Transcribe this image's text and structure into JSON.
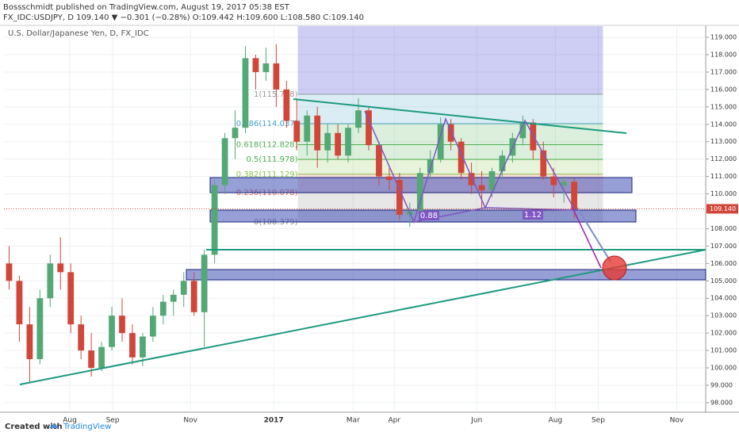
{
  "header": {
    "publisher": "Bossschmidt published on TradingView.com, August 19, 2017 05:38 EST",
    "quote": "FX_IDC:USDJPY, D 109.140 ▼ −0.301 (−0.28%) O:109.442 H:109.600 L:108.580 C:109.140"
  },
  "footer": {
    "created": "Created with",
    "brand": "TradingView"
  },
  "chart_data": {
    "type": "candlestick",
    "title": "U.S. Dollar/Japanese Yen, D, FX_IDC",
    "up_color": "#53a876",
    "down_color": "#d0473a",
    "ohlc": [
      [
        106.0,
        107.0,
        104.5,
        105.0
      ],
      [
        105.0,
        105.3,
        101.5,
        102.5
      ],
      [
        102.5,
        103.5,
        99.1,
        100.5
      ],
      [
        100.5,
        104.5,
        100.2,
        104.0
      ],
      [
        104.0,
        106.5,
        103.5,
        106.0
      ],
      [
        106.0,
        107.5,
        104.5,
        105.5
      ],
      [
        105.5,
        106.0,
        102.0,
        102.5
      ],
      [
        102.5,
        103.0,
        100.5,
        101.0
      ],
      [
        101.0,
        102.0,
        99.5,
        100.0
      ],
      [
        100.0,
        101.5,
        99.8,
        101.2
      ],
      [
        101.2,
        103.5,
        101.0,
        103.0
      ],
      [
        103.0,
        104.0,
        101.5,
        102.0
      ],
      [
        102.0,
        102.5,
        100.2,
        100.6
      ],
      [
        100.6,
        102.0,
        100.1,
        101.8
      ],
      [
        101.8,
        103.5,
        101.5,
        103.0
      ],
      [
        103.0,
        104.2,
        102.5,
        103.8
      ],
      [
        103.8,
        104.5,
        103.0,
        104.2
      ],
      [
        104.2,
        105.5,
        103.5,
        105.0
      ],
      [
        105.0,
        105.5,
        103.0,
        103.2
      ],
      [
        103.2,
        106.8,
        101.2,
        106.5
      ],
      [
        106.5,
        110.8,
        106.0,
        110.5
      ],
      [
        110.5,
        113.5,
        110.0,
        113.2
      ],
      [
        113.2,
        114.8,
        112.0,
        113.8
      ],
      [
        113.8,
        118.5,
        113.5,
        117.8
      ],
      [
        117.8,
        118.0,
        116.0,
        117.0
      ],
      [
        117.0,
        118.4,
        116.5,
        117.5
      ],
      [
        117.5,
        118.6,
        115.0,
        116.0
      ],
      [
        116.0,
        116.5,
        113.8,
        114.2
      ],
      [
        114.2,
        115.5,
        112.5,
        113.0
      ],
      [
        113.0,
        114.8,
        112.2,
        114.5
      ],
      [
        114.5,
        115.0,
        111.5,
        112.5
      ],
      [
        112.5,
        114.0,
        111.8,
        113.5
      ],
      [
        113.5,
        114.0,
        112.0,
        112.2
      ],
      [
        112.2,
        114.0,
        111.8,
        113.8
      ],
      [
        113.8,
        115.5,
        113.5,
        114.8
      ],
      [
        114.8,
        115.0,
        112.5,
        112.8
      ],
      [
        112.8,
        113.0,
        110.5,
        111.0
      ],
      [
        111.0,
        111.5,
        110.2,
        110.8
      ],
      [
        110.8,
        111.2,
        108.5,
        108.8
      ],
      [
        108.8,
        109.5,
        108.1,
        109.0
      ],
      [
        109.0,
        111.5,
        108.8,
        111.2
      ],
      [
        111.2,
        112.5,
        110.8,
        112.0
      ],
      [
        112.0,
        114.4,
        111.8,
        114.0
      ],
      [
        114.0,
        114.3,
        112.5,
        113.0
      ],
      [
        113.0,
        113.2,
        110.8,
        111.2
      ],
      [
        111.2,
        111.8,
        110.0,
        110.5
      ],
      [
        110.5,
        111.3,
        109.2,
        110.2
      ],
      [
        110.2,
        111.5,
        109.8,
        111.3
      ],
      [
        111.3,
        112.5,
        110.8,
        112.2
      ],
      [
        112.2,
        113.5,
        111.8,
        113.2
      ],
      [
        113.2,
        114.5,
        112.8,
        114.1
      ],
      [
        114.1,
        114.3,
        112.0,
        112.5
      ],
      [
        112.5,
        113.0,
        110.8,
        111.0
      ],
      [
        111.0,
        111.5,
        109.8,
        110.5
      ],
      [
        110.5,
        111.0,
        109.5,
        110.7
      ],
      [
        110.7,
        110.9,
        108.6,
        109.1
      ]
    ],
    "xlim": [
      0,
      68.3
    ],
    "xticks": [
      {
        "value": 6.41,
        "label": "Aug"
      },
      {
        "value": 10.58,
        "label": "Sep"
      },
      {
        "value": 18.15,
        "label": "Nov"
      },
      {
        "value": 26.25,
        "label": "2017"
      },
      {
        "value": 33.98,
        "label": "Mar"
      },
      {
        "value": 37.99,
        "label": "Apr"
      },
      {
        "value": 46.02,
        "label": "Jun"
      },
      {
        "value": 53.67,
        "label": "Aug"
      },
      {
        "value": 57.84,
        "label": "Sep"
      },
      {
        "value": 65.48,
        "label": "Nov"
      }
    ],
    "ylim": [
      97.45,
      119.64
    ],
    "yticks": [
      {
        "value": 98,
        "label": "98.000"
      },
      {
        "value": 99,
        "label": "99.000"
      },
      {
        "value": 100,
        "label": "100.000"
      },
      {
        "value": 101,
        "label": "101.000"
      },
      {
        "value": 102,
        "label": "102.000"
      },
      {
        "value": 103,
        "label": "103.000"
      },
      {
        "value": 104,
        "label": "104.000"
      },
      {
        "value": 105,
        "label": "105.000"
      },
      {
        "value": 106,
        "label": "106.000"
      },
      {
        "value": 107,
        "label": "107.000"
      },
      {
        "value": 108,
        "label": "108.000"
      },
      {
        "value": 109,
        "label": "109.000"
      },
      {
        "value": 110,
        "label": "110.000"
      },
      {
        "value": 111,
        "label": "111.000"
      },
      {
        "value": 112,
        "label": "112.000"
      },
      {
        "value": 113,
        "label": "113.000"
      },
      {
        "value": 114,
        "label": "114.000"
      },
      {
        "value": 115,
        "label": "115.000"
      },
      {
        "value": 116,
        "label": "116.000"
      },
      {
        "value": 117,
        "label": "117.000"
      },
      {
        "value": 118,
        "label": "118.000"
      },
      {
        "value": 119,
        "label": "119.000"
      }
    ],
    "grid": true,
    "last_price": {
      "value": 109.14,
      "label": "109.140"
    },
    "fib": {
      "xlim": [
        28.6,
        58.3
      ],
      "levels": [
        {
          "value": 115.728,
          "label": "1(115.728)",
          "color": "#999999"
        },
        {
          "value": 114.037,
          "label": "0.786(114.037)",
          "color": "#4aa3c8"
        },
        {
          "value": 112.828,
          "label": "0.618(112.828)",
          "color": "#4caf50"
        },
        {
          "value": 111.978,
          "label": "0.5(111.978)",
          "color": "#4caf50"
        },
        {
          "value": 111.129,
          "label": "0.382(111.129)",
          "color": "#8bc34a"
        },
        {
          "value": 110.078,
          "label": "0.236(110.078)",
          "color": "#e0675a"
        },
        {
          "value": 108.379,
          "label": "0(108.379)",
          "color": "#888888"
        }
      ]
    },
    "annotations": [
      "0.88",
      "1.12"
    ]
  }
}
